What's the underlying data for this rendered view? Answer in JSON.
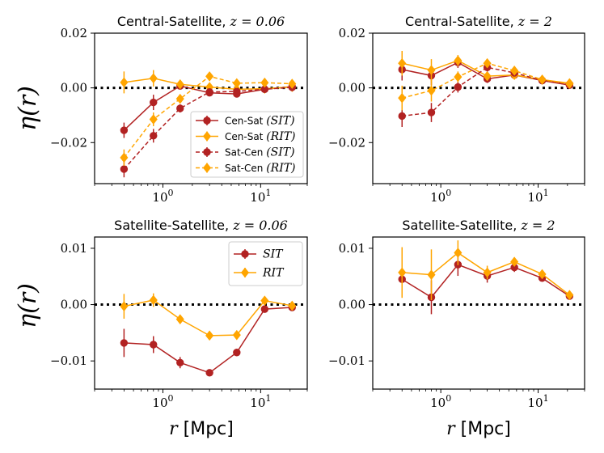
{
  "colors": {
    "sit": "#b22222",
    "rit": "#ffa500"
  },
  "y_axis_label": "η(r)",
  "x_axis_label_var": "r",
  "x_axis_label_unit": "[Mpc]",
  "x_tick_labels": [
    "10^0",
    "10^1"
  ],
  "chart_data": [
    {
      "type": "line",
      "title": "Central-Satellite,",
      "title_math": "z = 0.06",
      "xscale": "log",
      "xlim": [
        0.2,
        30
      ],
      "ylim": [
        -0.035,
        0.02
      ],
      "yticks": [
        -0.02,
        0.0,
        0.02
      ],
      "ytick_labels": [
        "−0.02",
        "0.00",
        "0.02"
      ],
      "zero_line": true,
      "legend_position": "lower-right",
      "series": [
        {
          "name": "Cen-Sat",
          "name_math": "(SIT)",
          "color": "#b22222",
          "marker": "circle",
          "dashed": false,
          "x": [
            0.4,
            0.8,
            1.5,
            3.0,
            5.7,
            11.0,
            21.0
          ],
          "y": [
            -0.0155,
            -0.0053,
            0.0007,
            -0.0018,
            -0.0022,
            -0.0005,
            0.0005
          ],
          "err": [
            0.0028,
            0.0028,
            0.0012,
            0.0012,
            0.0012,
            0.001,
            0.0009
          ]
        },
        {
          "name": "Cen-Sat",
          "name_math": "(RIT)",
          "color": "#ffa500",
          "marker": "diamond",
          "dashed": false,
          "x": [
            0.4,
            0.8,
            1.5,
            3.0,
            5.7,
            11.0,
            21.0
          ],
          "y": [
            0.002,
            0.0035,
            0.0013,
            0.0003,
            -0.0005,
            -0.0003,
            0.0003
          ],
          "err": [
            0.004,
            0.003,
            0.0015,
            0.0015,
            0.0012,
            0.001,
            0.0009
          ]
        },
        {
          "name": "Sat-Cen",
          "name_math": "(SIT)",
          "color": "#b22222",
          "marker": "circle",
          "dashed": true,
          "x": [
            0.4,
            0.8,
            1.5,
            3.0,
            5.7,
            11.0,
            21.0
          ],
          "y": [
            -0.0297,
            -0.0175,
            -0.0075,
            -0.0015,
            -0.0013,
            -0.0005,
            0.0002
          ],
          "err": [
            0.003,
            0.0025,
            0.0015,
            0.0012,
            0.0012,
            0.001,
            0.0009
          ]
        },
        {
          "name": "Sat-Cen",
          "name_math": "(RIT)",
          "color": "#ffa500",
          "marker": "diamond",
          "dashed": true,
          "x": [
            0.4,
            0.8,
            1.5,
            3.0,
            5.7,
            11.0,
            21.0
          ],
          "y": [
            -0.0255,
            -0.0115,
            -0.004,
            0.0042,
            0.0017,
            0.0019,
            0.0015
          ],
          "err": [
            0.003,
            0.0025,
            0.0015,
            0.0012,
            0.0012,
            0.001,
            0.0009
          ]
        }
      ]
    },
    {
      "type": "line",
      "title": "Central-Satellite,",
      "title_math": "z = 2",
      "xscale": "log",
      "xlim": [
        0.2,
        30
      ],
      "ylim": [
        -0.035,
        0.02
      ],
      "yticks": [
        -0.02,
        0.0,
        0.02
      ],
      "ytick_labels": [
        "−0.02",
        "0.00",
        "0.02"
      ],
      "zero_line": true,
      "series": [
        {
          "name": "Cen-Sat",
          "name_math": "(SIT)",
          "color": "#b22222",
          "marker": "circle",
          "dashed": false,
          "x": [
            0.4,
            0.8,
            1.5,
            3.0,
            5.7,
            11.0,
            21.0
          ],
          "y": [
            0.0067,
            0.0045,
            0.0093,
            0.0033,
            0.0047,
            0.0027,
            0.001
          ],
          "err": [
            0.004,
            0.0035,
            0.002,
            0.0015,
            0.0012,
            0.001,
            0.001
          ]
        },
        {
          "name": "Cen-Sat",
          "name_math": "(RIT)",
          "color": "#ffa500",
          "marker": "diamond",
          "dashed": false,
          "x": [
            0.4,
            0.8,
            1.5,
            3.0,
            5.7,
            11.0,
            21.0
          ],
          "y": [
            0.009,
            0.0065,
            0.01,
            0.0043,
            0.0047,
            0.003,
            0.0017
          ],
          "err": [
            0.0045,
            0.004,
            0.002,
            0.0015,
            0.0012,
            0.001,
            0.001
          ]
        },
        {
          "name": "Sat-Cen",
          "name_math": "(SIT)",
          "color": "#b22222",
          "marker": "circle",
          "dashed": true,
          "x": [
            0.4,
            0.8,
            1.5,
            3.0,
            5.7,
            11.0,
            21.0
          ],
          "y": [
            -0.0103,
            -0.009,
            0.0003,
            0.0075,
            0.0055,
            0.0027,
            0.0012
          ],
          "err": [
            0.004,
            0.0035,
            0.002,
            0.0015,
            0.0012,
            0.001,
            0.001
          ]
        },
        {
          "name": "Sat-Cen",
          "name_math": "(RIT)",
          "color": "#ffa500",
          "marker": "diamond",
          "dashed": true,
          "x": [
            0.4,
            0.8,
            1.5,
            3.0,
            5.7,
            11.0,
            21.0
          ],
          "y": [
            -0.0037,
            -0.001,
            0.004,
            0.009,
            0.0063,
            0.003,
            0.0015
          ],
          "err": [
            0.0045,
            0.004,
            0.002,
            0.0015,
            0.0012,
            0.001,
            0.001
          ]
        }
      ]
    },
    {
      "type": "line",
      "title": "Satellite-Satellite,",
      "title_math": "z = 0.06",
      "xscale": "log",
      "xlim": [
        0.2,
        30
      ],
      "ylim": [
        -0.015,
        0.012
      ],
      "yticks": [
        -0.01,
        0.0,
        0.01
      ],
      "ytick_labels": [
        "−0.01",
        "0.00",
        "0.01"
      ],
      "zero_line": true,
      "legend_position": "top-right",
      "series": [
        {
          "name": "",
          "name_math": "SIT",
          "color": "#b22222",
          "marker": "circle",
          "dashed": false,
          "x": [
            0.4,
            0.8,
            1.5,
            3.0,
            5.7,
            11.0,
            21.0
          ],
          "y": [
            -0.0068,
            -0.0071,
            -0.0103,
            -0.0121,
            -0.0085,
            -0.0008,
            -0.0005
          ],
          "err": [
            0.0025,
            0.0015,
            0.001,
            0.0005,
            0.0005,
            0.0004,
            0.0004
          ]
        },
        {
          "name": "",
          "name_math": "RIT",
          "color": "#ffa500",
          "marker": "diamond",
          "dashed": false,
          "x": [
            0.4,
            0.8,
            1.5,
            3.0,
            5.7,
            11.0,
            21.0
          ],
          "y": [
            -0.0003,
            0.0008,
            -0.0026,
            -0.0055,
            -0.0054,
            0.0007,
            -0.0002
          ],
          "err": [
            0.0022,
            0.0012,
            0.0008,
            0.0005,
            0.0005,
            0.0004,
            0.0004
          ]
        }
      ]
    },
    {
      "type": "line",
      "title": "Satellite-Satellite,",
      "title_math": "z = 2",
      "xscale": "log",
      "xlim": [
        0.2,
        30
      ],
      "ylim": [
        -0.015,
        0.012
      ],
      "yticks": [
        -0.01,
        0.0,
        0.01
      ],
      "ytick_labels": [
        "−0.01",
        "0.00",
        "0.01"
      ],
      "zero_line": true,
      "series": [
        {
          "name": "",
          "name_math": "SIT",
          "color": "#b22222",
          "marker": "circle",
          "dashed": false,
          "x": [
            0.4,
            0.8,
            1.5,
            3.0,
            5.7,
            11.0,
            21.0
          ],
          "y": [
            0.0045,
            0.0013,
            0.0071,
            0.0051,
            0.0066,
            0.0047,
            0.0015
          ],
          "err": [
            0.003,
            0.003,
            0.002,
            0.0012,
            0.0008,
            0.0006,
            0.0005
          ]
        },
        {
          "name": "",
          "name_math": "RIT",
          "color": "#ffa500",
          "marker": "diamond",
          "dashed": false,
          "x": [
            0.4,
            0.8,
            1.5,
            3.0,
            5.7,
            11.0,
            21.0
          ],
          "y": [
            0.0057,
            0.0053,
            0.0092,
            0.0057,
            0.0076,
            0.0054,
            0.0017
          ],
          "err": [
            0.0045,
            0.0045,
            0.0022,
            0.0012,
            0.0008,
            0.0006,
            0.0005
          ]
        }
      ]
    }
  ]
}
